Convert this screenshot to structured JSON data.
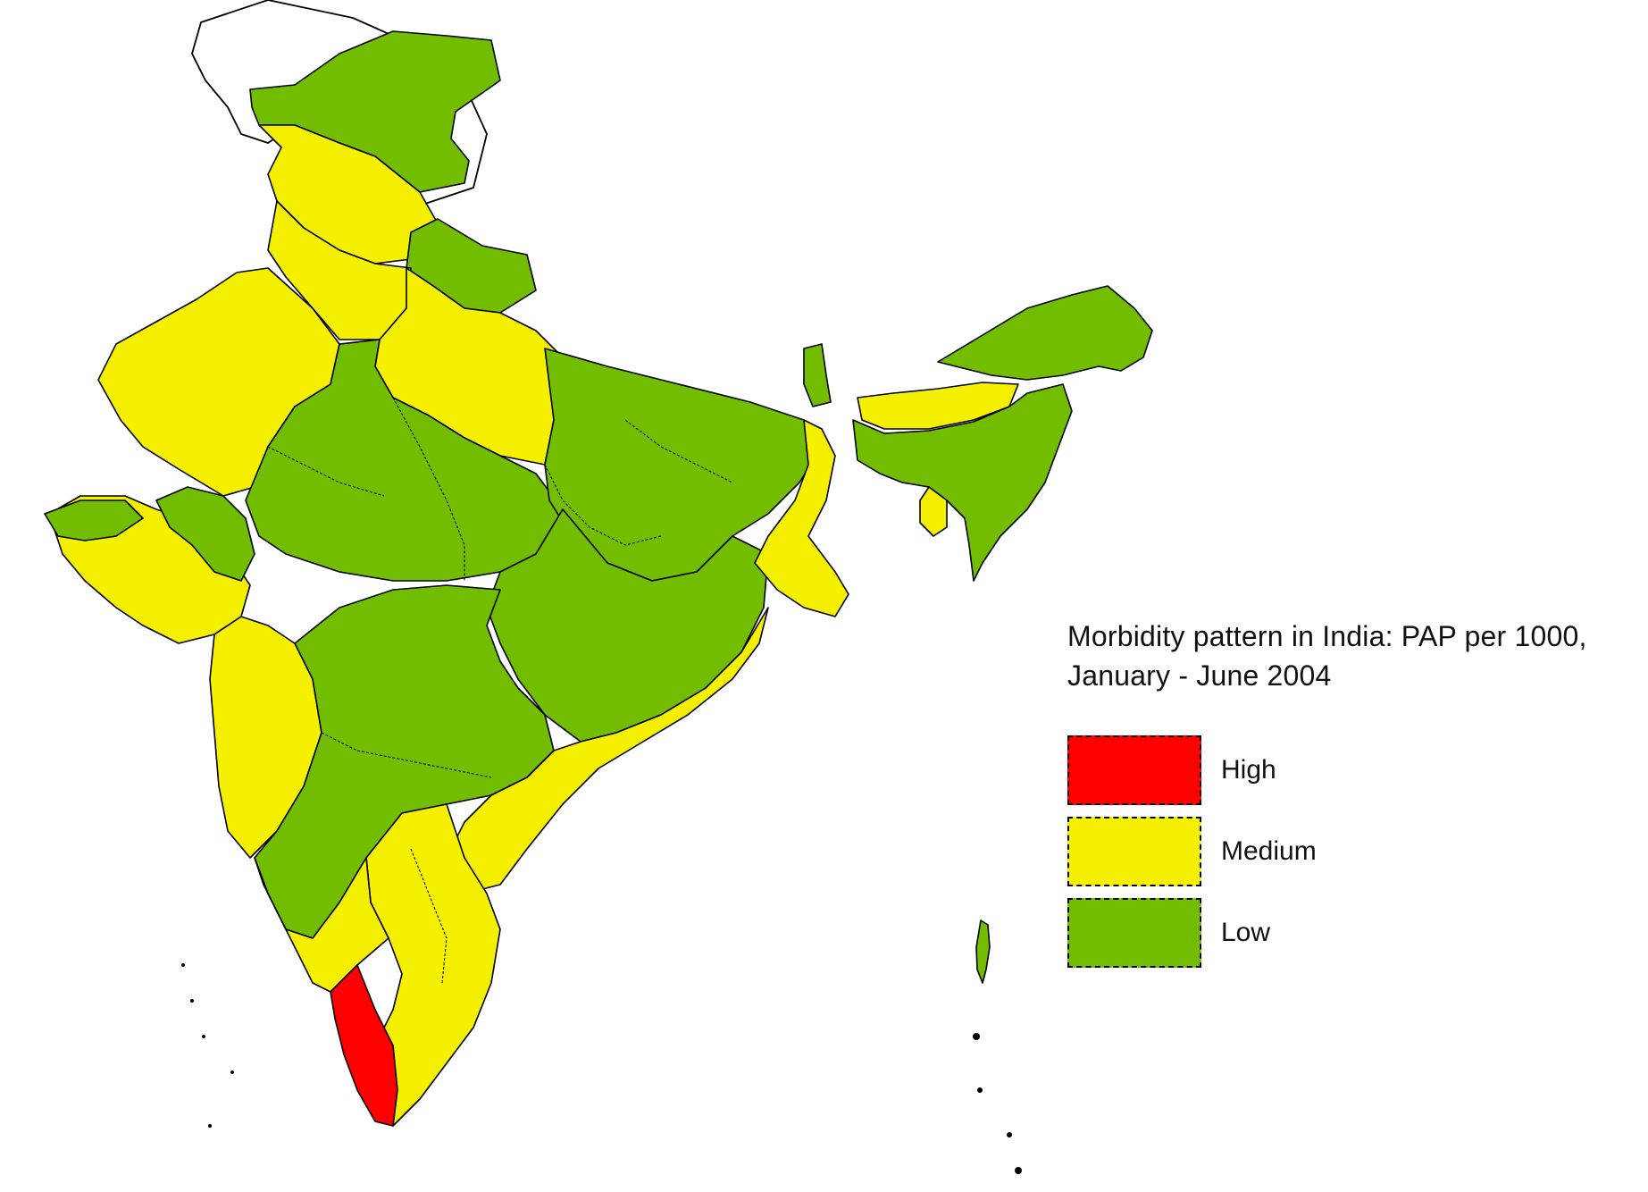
{
  "legend": {
    "title_line1": "Morbidity pattern in India: PAP per 1000,",
    "title_line2": "January - June 2004",
    "items": [
      {
        "label": "High",
        "color": "#ff0000"
      },
      {
        "label": "Medium",
        "color": "#f5f000"
      },
      {
        "label": "Low",
        "color": "#72bd00"
      }
    ]
  },
  "colors": {
    "high": "#ff0000",
    "medium": "#f5f000",
    "low": "#72bd00",
    "unclassified": "#ffffff"
  }
}
